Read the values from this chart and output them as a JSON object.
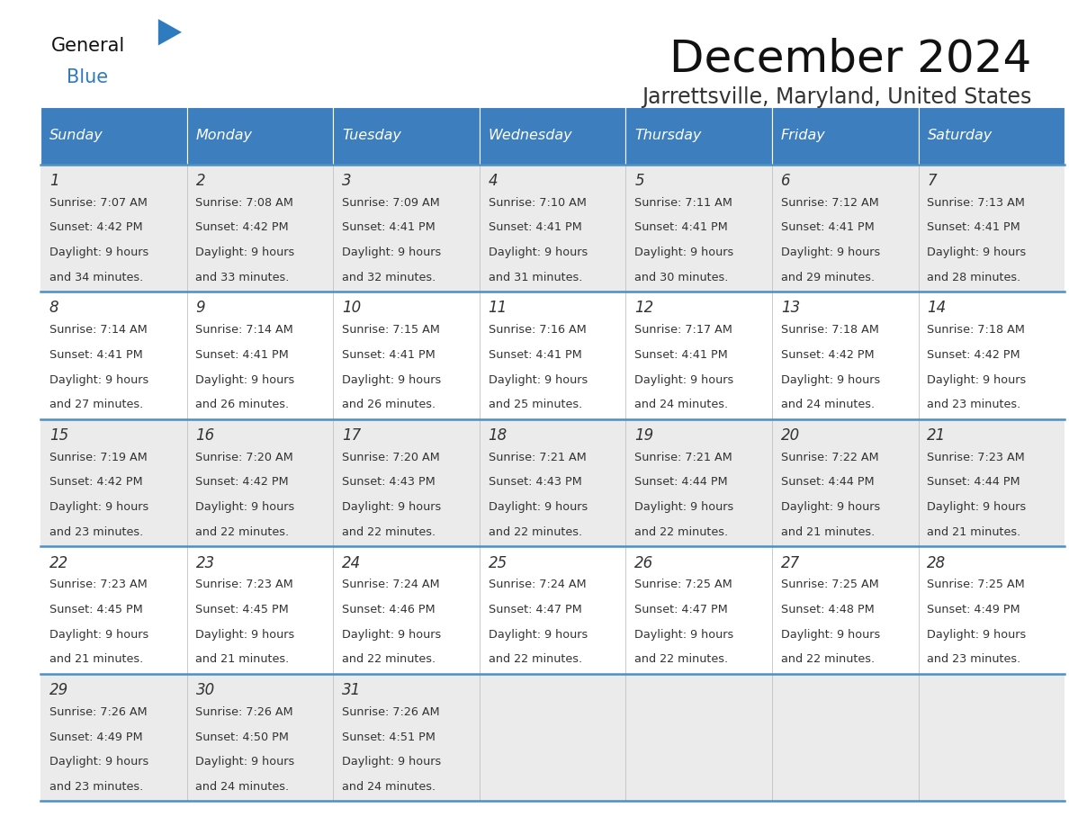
{
  "title": "December 2024",
  "subtitle": "Jarrettsville, Maryland, United States",
  "header_color": "#3d7ebf",
  "header_text_color": "#ffffff",
  "day_names": [
    "Sunday",
    "Monday",
    "Tuesday",
    "Wednesday",
    "Thursday",
    "Friday",
    "Saturday"
  ],
  "row_bg_even": "#ebebeb",
  "row_bg_odd": "#ffffff",
  "border_color": "#4a90c4",
  "text_color": "#333333",
  "days": [
    {
      "day": 1,
      "col": 0,
      "row": 0,
      "sunrise": "7:07 AM",
      "sunset": "4:42 PM",
      "dl_min": "34"
    },
    {
      "day": 2,
      "col": 1,
      "row": 0,
      "sunrise": "7:08 AM",
      "sunset": "4:42 PM",
      "dl_min": "33"
    },
    {
      "day": 3,
      "col": 2,
      "row": 0,
      "sunrise": "7:09 AM",
      "sunset": "4:41 PM",
      "dl_min": "32"
    },
    {
      "day": 4,
      "col": 3,
      "row": 0,
      "sunrise": "7:10 AM",
      "sunset": "4:41 PM",
      "dl_min": "31"
    },
    {
      "day": 5,
      "col": 4,
      "row": 0,
      "sunrise": "7:11 AM",
      "sunset": "4:41 PM",
      "dl_min": "30"
    },
    {
      "day": 6,
      "col": 5,
      "row": 0,
      "sunrise": "7:12 AM",
      "sunset": "4:41 PM",
      "dl_min": "29"
    },
    {
      "day": 7,
      "col": 6,
      "row": 0,
      "sunrise": "7:13 AM",
      "sunset": "4:41 PM",
      "dl_min": "28"
    },
    {
      "day": 8,
      "col": 0,
      "row": 1,
      "sunrise": "7:14 AM",
      "sunset": "4:41 PM",
      "dl_min": "27"
    },
    {
      "day": 9,
      "col": 1,
      "row": 1,
      "sunrise": "7:14 AM",
      "sunset": "4:41 PM",
      "dl_min": "26"
    },
    {
      "day": 10,
      "col": 2,
      "row": 1,
      "sunrise": "7:15 AM",
      "sunset": "4:41 PM",
      "dl_min": "26"
    },
    {
      "day": 11,
      "col": 3,
      "row": 1,
      "sunrise": "7:16 AM",
      "sunset": "4:41 PM",
      "dl_min": "25"
    },
    {
      "day": 12,
      "col": 4,
      "row": 1,
      "sunrise": "7:17 AM",
      "sunset": "4:41 PM",
      "dl_min": "24"
    },
    {
      "day": 13,
      "col": 5,
      "row": 1,
      "sunrise": "7:18 AM",
      "sunset": "4:42 PM",
      "dl_min": "24"
    },
    {
      "day": 14,
      "col": 6,
      "row": 1,
      "sunrise": "7:18 AM",
      "sunset": "4:42 PM",
      "dl_min": "23"
    },
    {
      "day": 15,
      "col": 0,
      "row": 2,
      "sunrise": "7:19 AM",
      "sunset": "4:42 PM",
      "dl_min": "23"
    },
    {
      "day": 16,
      "col": 1,
      "row": 2,
      "sunrise": "7:20 AM",
      "sunset": "4:42 PM",
      "dl_min": "22"
    },
    {
      "day": 17,
      "col": 2,
      "row": 2,
      "sunrise": "7:20 AM",
      "sunset": "4:43 PM",
      "dl_min": "22"
    },
    {
      "day": 18,
      "col": 3,
      "row": 2,
      "sunrise": "7:21 AM",
      "sunset": "4:43 PM",
      "dl_min": "22"
    },
    {
      "day": 19,
      "col": 4,
      "row": 2,
      "sunrise": "7:21 AM",
      "sunset": "4:44 PM",
      "dl_min": "22"
    },
    {
      "day": 20,
      "col": 5,
      "row": 2,
      "sunrise": "7:22 AM",
      "sunset": "4:44 PM",
      "dl_min": "21"
    },
    {
      "day": 21,
      "col": 6,
      "row": 2,
      "sunrise": "7:23 AM",
      "sunset": "4:44 PM",
      "dl_min": "21"
    },
    {
      "day": 22,
      "col": 0,
      "row": 3,
      "sunrise": "7:23 AM",
      "sunset": "4:45 PM",
      "dl_min": "21"
    },
    {
      "day": 23,
      "col": 1,
      "row": 3,
      "sunrise": "7:23 AM",
      "sunset": "4:45 PM",
      "dl_min": "21"
    },
    {
      "day": 24,
      "col": 2,
      "row": 3,
      "sunrise": "7:24 AM",
      "sunset": "4:46 PM",
      "dl_min": "22"
    },
    {
      "day": 25,
      "col": 3,
      "row": 3,
      "sunrise": "7:24 AM",
      "sunset": "4:47 PM",
      "dl_min": "22"
    },
    {
      "day": 26,
      "col": 4,
      "row": 3,
      "sunrise": "7:25 AM",
      "sunset": "4:47 PM",
      "dl_min": "22"
    },
    {
      "day": 27,
      "col": 5,
      "row": 3,
      "sunrise": "7:25 AM",
      "sunset": "4:48 PM",
      "dl_min": "22"
    },
    {
      "day": 28,
      "col": 6,
      "row": 3,
      "sunrise": "7:25 AM",
      "sunset": "4:49 PM",
      "dl_min": "23"
    },
    {
      "day": 29,
      "col": 0,
      "row": 4,
      "sunrise": "7:26 AM",
      "sunset": "4:49 PM",
      "dl_min": "23"
    },
    {
      "day": 30,
      "col": 1,
      "row": 4,
      "sunrise": "7:26 AM",
      "sunset": "4:50 PM",
      "dl_min": "24"
    },
    {
      "day": 31,
      "col": 2,
      "row": 4,
      "sunrise": "7:26 AM",
      "sunset": "4:51 PM",
      "dl_min": "24"
    }
  ],
  "num_rows": 5
}
